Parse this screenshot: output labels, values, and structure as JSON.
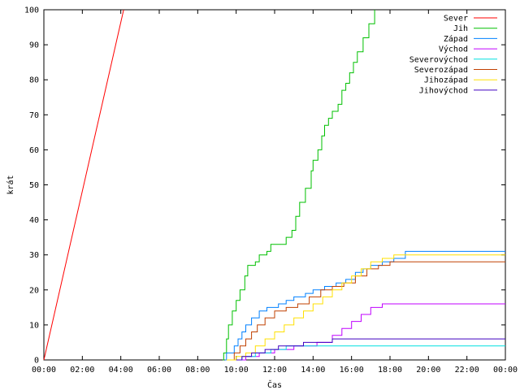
{
  "chart_data": {
    "type": "line",
    "xlabel": "Čas",
    "ylabel": "krát",
    "x_unit": "hours",
    "xlim": [
      0,
      24
    ],
    "ylim": [
      0,
      100
    ],
    "grid": false,
    "legend_position": "top-right",
    "x_tick_labels": [
      "00:00",
      "02:00",
      "04:00",
      "06:00",
      "08:00",
      "10:00",
      "12:00",
      "14:00",
      "16:00",
      "18:00",
      "20:00",
      "22:00",
      "00:00"
    ],
    "x_tick_values": [
      0,
      2,
      4,
      6,
      8,
      10,
      12,
      14,
      16,
      18,
      20,
      22,
      24
    ],
    "y_ticks": [
      0,
      10,
      20,
      30,
      40,
      50,
      60,
      70,
      80,
      90,
      100
    ],
    "series": [
      {
        "name": "Sever",
        "color": "#ff0000",
        "points": [
          [
            0,
            0
          ],
          [
            4.15,
            100
          ]
        ]
      },
      {
        "name": "Jih",
        "color": "#00c000",
        "points": [
          [
            9.3,
            0
          ],
          [
            9.35,
            2
          ],
          [
            9.5,
            6
          ],
          [
            9.6,
            10
          ],
          [
            9.8,
            14
          ],
          [
            10.0,
            17
          ],
          [
            10.2,
            20
          ],
          [
            10.45,
            24
          ],
          [
            10.6,
            27
          ],
          [
            11.0,
            28
          ],
          [
            11.2,
            30
          ],
          [
            11.6,
            31
          ],
          [
            11.8,
            33
          ],
          [
            12.4,
            33
          ],
          [
            12.6,
            35
          ],
          [
            12.9,
            37
          ],
          [
            13.1,
            41
          ],
          [
            13.3,
            45
          ],
          [
            13.6,
            49
          ],
          [
            13.9,
            54
          ],
          [
            14.0,
            57
          ],
          [
            14.25,
            60
          ],
          [
            14.45,
            64
          ],
          [
            14.6,
            67
          ],
          [
            14.8,
            69
          ],
          [
            15.0,
            71
          ],
          [
            15.3,
            73
          ],
          [
            15.5,
            77
          ],
          [
            15.7,
            79
          ],
          [
            15.9,
            82
          ],
          [
            16.1,
            85
          ],
          [
            16.3,
            88
          ],
          [
            16.6,
            92
          ],
          [
            16.9,
            96
          ],
          [
            17.2,
            100
          ]
        ]
      },
      {
        "name": "Západ",
        "color": "#0080ff",
        "points": [
          [
            9.4,
            0
          ],
          [
            9.5,
            2
          ],
          [
            9.9,
            4
          ],
          [
            10.1,
            6
          ],
          [
            10.3,
            8
          ],
          [
            10.5,
            10
          ],
          [
            10.8,
            12
          ],
          [
            11.2,
            14
          ],
          [
            11.6,
            15
          ],
          [
            12.2,
            16
          ],
          [
            12.6,
            17
          ],
          [
            13.0,
            18
          ],
          [
            13.6,
            19
          ],
          [
            14.0,
            20
          ],
          [
            14.6,
            21
          ],
          [
            15.2,
            22
          ],
          [
            15.7,
            23
          ],
          [
            16.2,
            25
          ],
          [
            16.6,
            26
          ],
          [
            17.0,
            27
          ],
          [
            17.6,
            28
          ],
          [
            18.2,
            29
          ],
          [
            18.8,
            31
          ],
          [
            24.0,
            31
          ]
        ]
      },
      {
        "name": "Východ",
        "color": "#c000ff",
        "points": [
          [
            9.8,
            0
          ],
          [
            10.5,
            1
          ],
          [
            11.2,
            2
          ],
          [
            12.0,
            3
          ],
          [
            13.0,
            4
          ],
          [
            14.2,
            5
          ],
          [
            15.0,
            7
          ],
          [
            15.5,
            9
          ],
          [
            16.0,
            11
          ],
          [
            16.5,
            13
          ],
          [
            17.0,
            15
          ],
          [
            17.6,
            16
          ],
          [
            24.0,
            16
          ]
        ]
      },
      {
        "name": "Severovýchod",
        "color": "#00e0e0",
        "points": [
          [
            9.6,
            0
          ],
          [
            10.3,
            1
          ],
          [
            11.0,
            2
          ],
          [
            11.8,
            3
          ],
          [
            12.6,
            4
          ],
          [
            24.0,
            4
          ]
        ]
      },
      {
        "name": "Severozápad",
        "color": "#c04000",
        "points": [
          [
            9.7,
            0
          ],
          [
            9.9,
            2
          ],
          [
            10.2,
            4
          ],
          [
            10.5,
            6
          ],
          [
            10.8,
            8
          ],
          [
            11.1,
            10
          ],
          [
            11.5,
            12
          ],
          [
            12.0,
            14
          ],
          [
            12.6,
            15
          ],
          [
            13.2,
            16
          ],
          [
            13.8,
            18
          ],
          [
            14.4,
            20
          ],
          [
            15.0,
            21
          ],
          [
            15.6,
            22
          ],
          [
            16.2,
            24
          ],
          [
            16.8,
            26
          ],
          [
            17.4,
            27
          ],
          [
            18.0,
            28
          ],
          [
            24.0,
            28
          ]
        ]
      },
      {
        "name": "Jihozápad",
        "color": "#ffe000",
        "points": [
          [
            9.5,
            0
          ],
          [
            10.0,
            1
          ],
          [
            10.5,
            2
          ],
          [
            11.0,
            4
          ],
          [
            11.5,
            6
          ],
          [
            12.0,
            8
          ],
          [
            12.5,
            10
          ],
          [
            13.0,
            12
          ],
          [
            13.5,
            14
          ],
          [
            14.0,
            16
          ],
          [
            14.5,
            18
          ],
          [
            15.0,
            20
          ],
          [
            15.5,
            22
          ],
          [
            16.0,
            24
          ],
          [
            16.5,
            26
          ],
          [
            17.0,
            28
          ],
          [
            17.6,
            29
          ],
          [
            18.2,
            30
          ],
          [
            24.0,
            30
          ]
        ]
      },
      {
        "name": "Jihovýchod",
        "color": "#4000c0",
        "points": [
          [
            10.0,
            0
          ],
          [
            10.3,
            1
          ],
          [
            10.8,
            2
          ],
          [
            11.5,
            3
          ],
          [
            12.2,
            4
          ],
          [
            13.5,
            5
          ],
          [
            15.0,
            6
          ],
          [
            24.0,
            6
          ]
        ]
      }
    ]
  }
}
